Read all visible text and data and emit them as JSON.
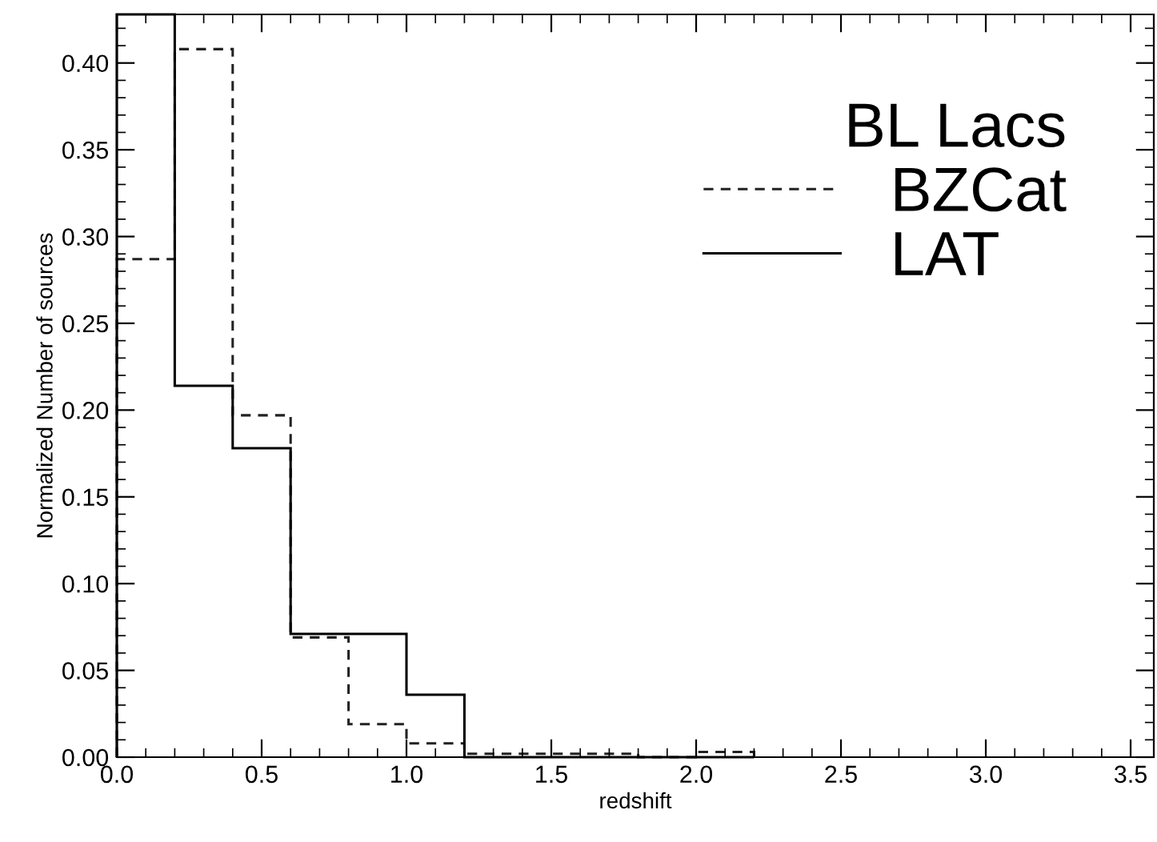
{
  "chart_data": {
    "type": "histogram",
    "xlabel": "redshift",
    "ylabel": "Normalized Number of sources",
    "legend_title": "BL Lacs",
    "bins": [
      0.0,
      0.2,
      0.4,
      0.6,
      0.8,
      1.0,
      1.2,
      1.4,
      1.6,
      1.8,
      2.0,
      2.2
    ],
    "series": [
      {
        "name": "BZCat",
        "color": "#222222",
        "line_style": "dashed",
        "values": [
          0.287,
          0.408,
          0.197,
          0.069,
          0.019,
          0.008,
          0.002,
          0.002,
          0.002,
          0.0,
          0.003
        ]
      },
      {
        "name": "LAT",
        "color": "#000000",
        "line_style": "solid",
        "values": [
          0.428,
          0.214,
          0.178,
          0.071,
          0.071,
          0.036,
          0.0,
          0.0,
          0.0,
          0.0,
          0.0
        ]
      }
    ],
    "xlim": [
      0,
      3.58
    ],
    "ylim": [
      0,
      0.428
    ],
    "xticks": [
      {
        "value": 0,
        "label": "0.0"
      },
      0.5,
      {
        "value": 1,
        "label": "1.0"
      },
      1.5,
      {
        "value": 2,
        "label": "2.0"
      },
      2.5,
      {
        "value": 3,
        "label": "3.0"
      },
      3.5
    ],
    "yticks": [
      {
        "value": 0,
        "label": "0.00"
      },
      0.05,
      {
        "value": 0.1,
        "label": "0.10"
      },
      0.15,
      {
        "value": 0.2,
        "label": "0.20"
      },
      0.25,
      {
        "value": 0.3,
        "label": "0.30"
      },
      0.35,
      {
        "value": 0.4,
        "label": "0.40"
      }
    ],
    "grid": false,
    "legend": "top right"
  }
}
